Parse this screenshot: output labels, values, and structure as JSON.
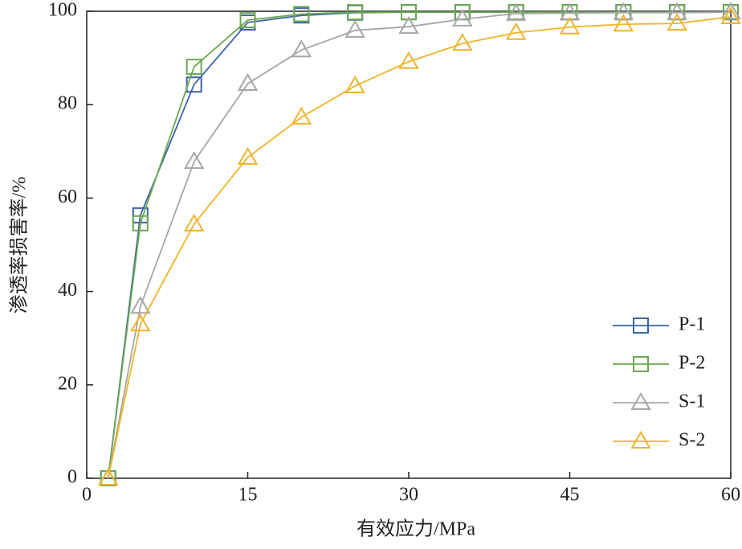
{
  "chart_data": {
    "type": "line",
    "x_label": "有效应力/MPa",
    "y_label": "渗透率损害率/%",
    "xlim": [
      0,
      60
    ],
    "xticks": [
      0,
      15,
      30,
      45,
      60
    ],
    "ylim": [
      0,
      100
    ],
    "yticks": [
      0,
      20,
      40,
      60,
      80,
      100
    ],
    "legend": "lower right",
    "series": [
      {
        "name": "P-1",
        "color": "#3b63a8",
        "marker": "square",
        "x": [
          2,
          5,
          10,
          15,
          20,
          25,
          30,
          35,
          40,
          45,
          50,
          55,
          60
        ],
        "values": [
          0,
          56.3,
          84.3,
          97.6,
          99.1,
          99.7,
          99.8,
          99.8,
          99.8,
          99.8,
          99.8,
          99.8,
          99.8
        ]
      },
      {
        "name": "P-2",
        "color": "#6aa84f",
        "marker": "square",
        "x": [
          2,
          5,
          10,
          15,
          20,
          25,
          30,
          35,
          40,
          45,
          50,
          55,
          60
        ],
        "values": [
          0,
          54.6,
          88.1,
          98.1,
          99.4,
          99.8,
          99.8,
          99.8,
          99.8,
          99.8,
          99.8,
          99.8,
          99.8
        ]
      },
      {
        "name": "S-1",
        "color": "#a6a6a6",
        "marker": "triangle",
        "x": [
          2,
          5,
          10,
          15,
          20,
          25,
          30,
          35,
          40,
          45,
          50,
          55,
          60
        ],
        "values": [
          0,
          36.8,
          67.8,
          84.5,
          91.7,
          95.9,
          96.7,
          98.3,
          99.5,
          99.6,
          99.7,
          99.7,
          99.8
        ]
      },
      {
        "name": "S-2",
        "color": "#f0b429",
        "marker": "triangle",
        "x": [
          2,
          5,
          10,
          15,
          20,
          25,
          30,
          35,
          40,
          45,
          50,
          55,
          60
        ],
        "values": [
          0,
          33,
          54.4,
          68.7,
          77.3,
          84,
          89.2,
          93.1,
          95.4,
          96.6,
          97.2,
          97.4,
          98.8
        ]
      }
    ]
  }
}
